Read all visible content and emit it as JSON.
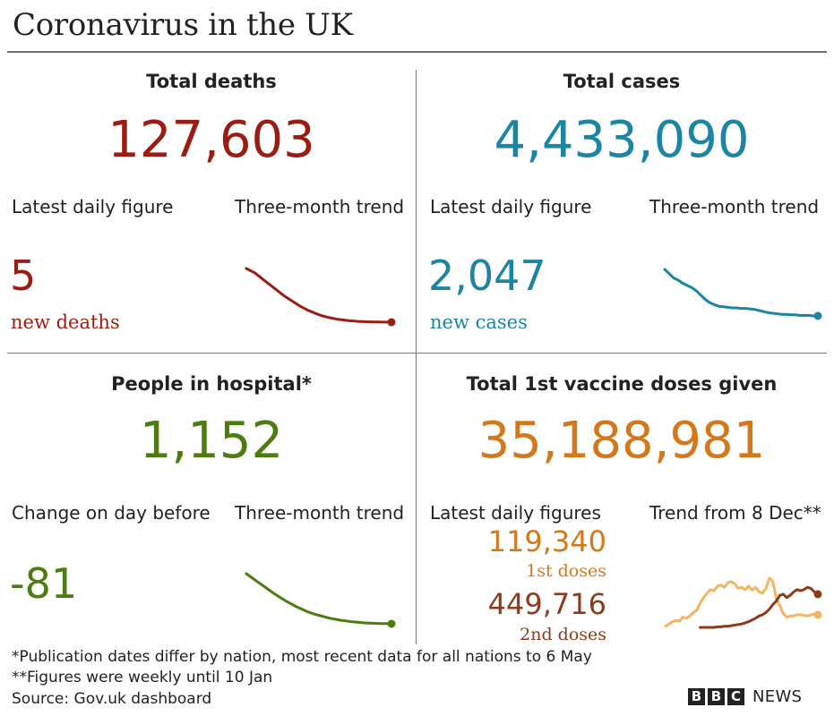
{
  "title": "Coronavirus in the UK",
  "panels": {
    "deaths": {
      "heading": "Total deaths",
      "total": "127,603",
      "latest_label": "Latest daily figure",
      "trend_label": "Three-month trend",
      "latest_value": "5",
      "latest_unit": "new deaths",
      "color": "#9b1c13"
    },
    "cases": {
      "heading": "Total cases",
      "total": "4,433,090",
      "latest_label": "Latest daily figure",
      "trend_label": "Three-month trend",
      "latest_value": "2,047",
      "latest_unit": "new cases",
      "color": "#1c85a3"
    },
    "hospital": {
      "heading": "People in hospital*",
      "total": "1,152",
      "latest_label": "Change on day before",
      "trend_label": "Three-month trend",
      "latest_value": "-81",
      "color": "#4e7c12"
    },
    "vaccine": {
      "heading": "Total 1st vaccine doses given",
      "total": "35,188,981",
      "latest_label": "Latest daily figures",
      "trend_label": "Trend from 8 Dec**",
      "first_value": "119,340",
      "first_label": "1st doses",
      "second_value": "449,716",
      "second_label": "2nd doses",
      "first_color": "#f5b461",
      "second_color": "#8c3c1d"
    }
  },
  "footnotes": [
    "*Publication dates differ by nation, most recent data for all nations to 6 May",
    "**Figures were weekly until 10 Jan",
    "Source: Gov.uk dashboard"
  ],
  "brand": {
    "letters": [
      "B",
      "B",
      "C"
    ],
    "word": "NEWS"
  },
  "chart_data": [
    {
      "type": "line",
      "series": [
        {
          "values": [
            100,
            96,
            92,
            86,
            80,
            74,
            68,
            62,
            56,
            50,
            45,
            40,
            35,
            30,
            26,
            22,
            19,
            16,
            13,
            11,
            9,
            7.5,
            6,
            5,
            4,
            3.2,
            2.6,
            2,
            1.6,
            1.3,
            1.1,
            0.9,
            0.8,
            0.7,
            0.6,
            0.5
          ]
        }
      ]
    },
    {
      "type": "line",
      "series": [
        {
          "values": [
            100,
            92,
            84,
            80,
            74,
            70,
            66,
            60,
            52,
            44,
            38,
            34,
            31,
            30,
            29,
            28,
            28,
            27,
            27,
            26,
            25,
            23,
            21,
            19,
            18,
            17,
            16,
            16,
            15,
            15,
            14,
            14,
            14,
            13,
            13
          ]
        }
      ]
    },
    {
      "type": "line",
      "series": [
        {
          "values": [
            100,
            92,
            84,
            76,
            68,
            60,
            53,
            46,
            40,
            34,
            29,
            24,
            20,
            17,
            14,
            11,
            9,
            7,
            5.5,
            4,
            3,
            2,
            1.4,
            1,
            0.6,
            0.3,
            0
          ]
        }
      ]
    },
    {
      "type": "line",
      "ylim": [
        0,
        100
      ],
      "series": [
        {
          "name": "1st doses",
          "values": [
            2,
            6,
            10,
            12,
            11,
            18,
            16,
            20,
            26,
            30,
            42,
            52,
            60,
            66,
            64,
            72,
            74,
            70,
            78,
            80,
            76,
            68,
            70,
            66,
            72,
            65,
            70,
            62,
            60,
            68,
            86,
            80,
            50,
            38,
            24,
            18,
            20,
            20,
            22,
            22,
            21,
            20,
            22,
            23,
            22
          ]
        },
        {
          "name": "2nd doses",
          "values": [
            null,
            null,
            null,
            null,
            null,
            null,
            null,
            null,
            null,
            null,
            0,
            0,
            0,
            0,
            0,
            1,
            1,
            2,
            2,
            3,
            4,
            5,
            6,
            8,
            10,
            13,
            16,
            20,
            22,
            26,
            32,
            40,
            46,
            56,
            58,
            52,
            56,
            62,
            66,
            64,
            66,
            70,
            68,
            62,
            58
          ]
        }
      ]
    }
  ]
}
